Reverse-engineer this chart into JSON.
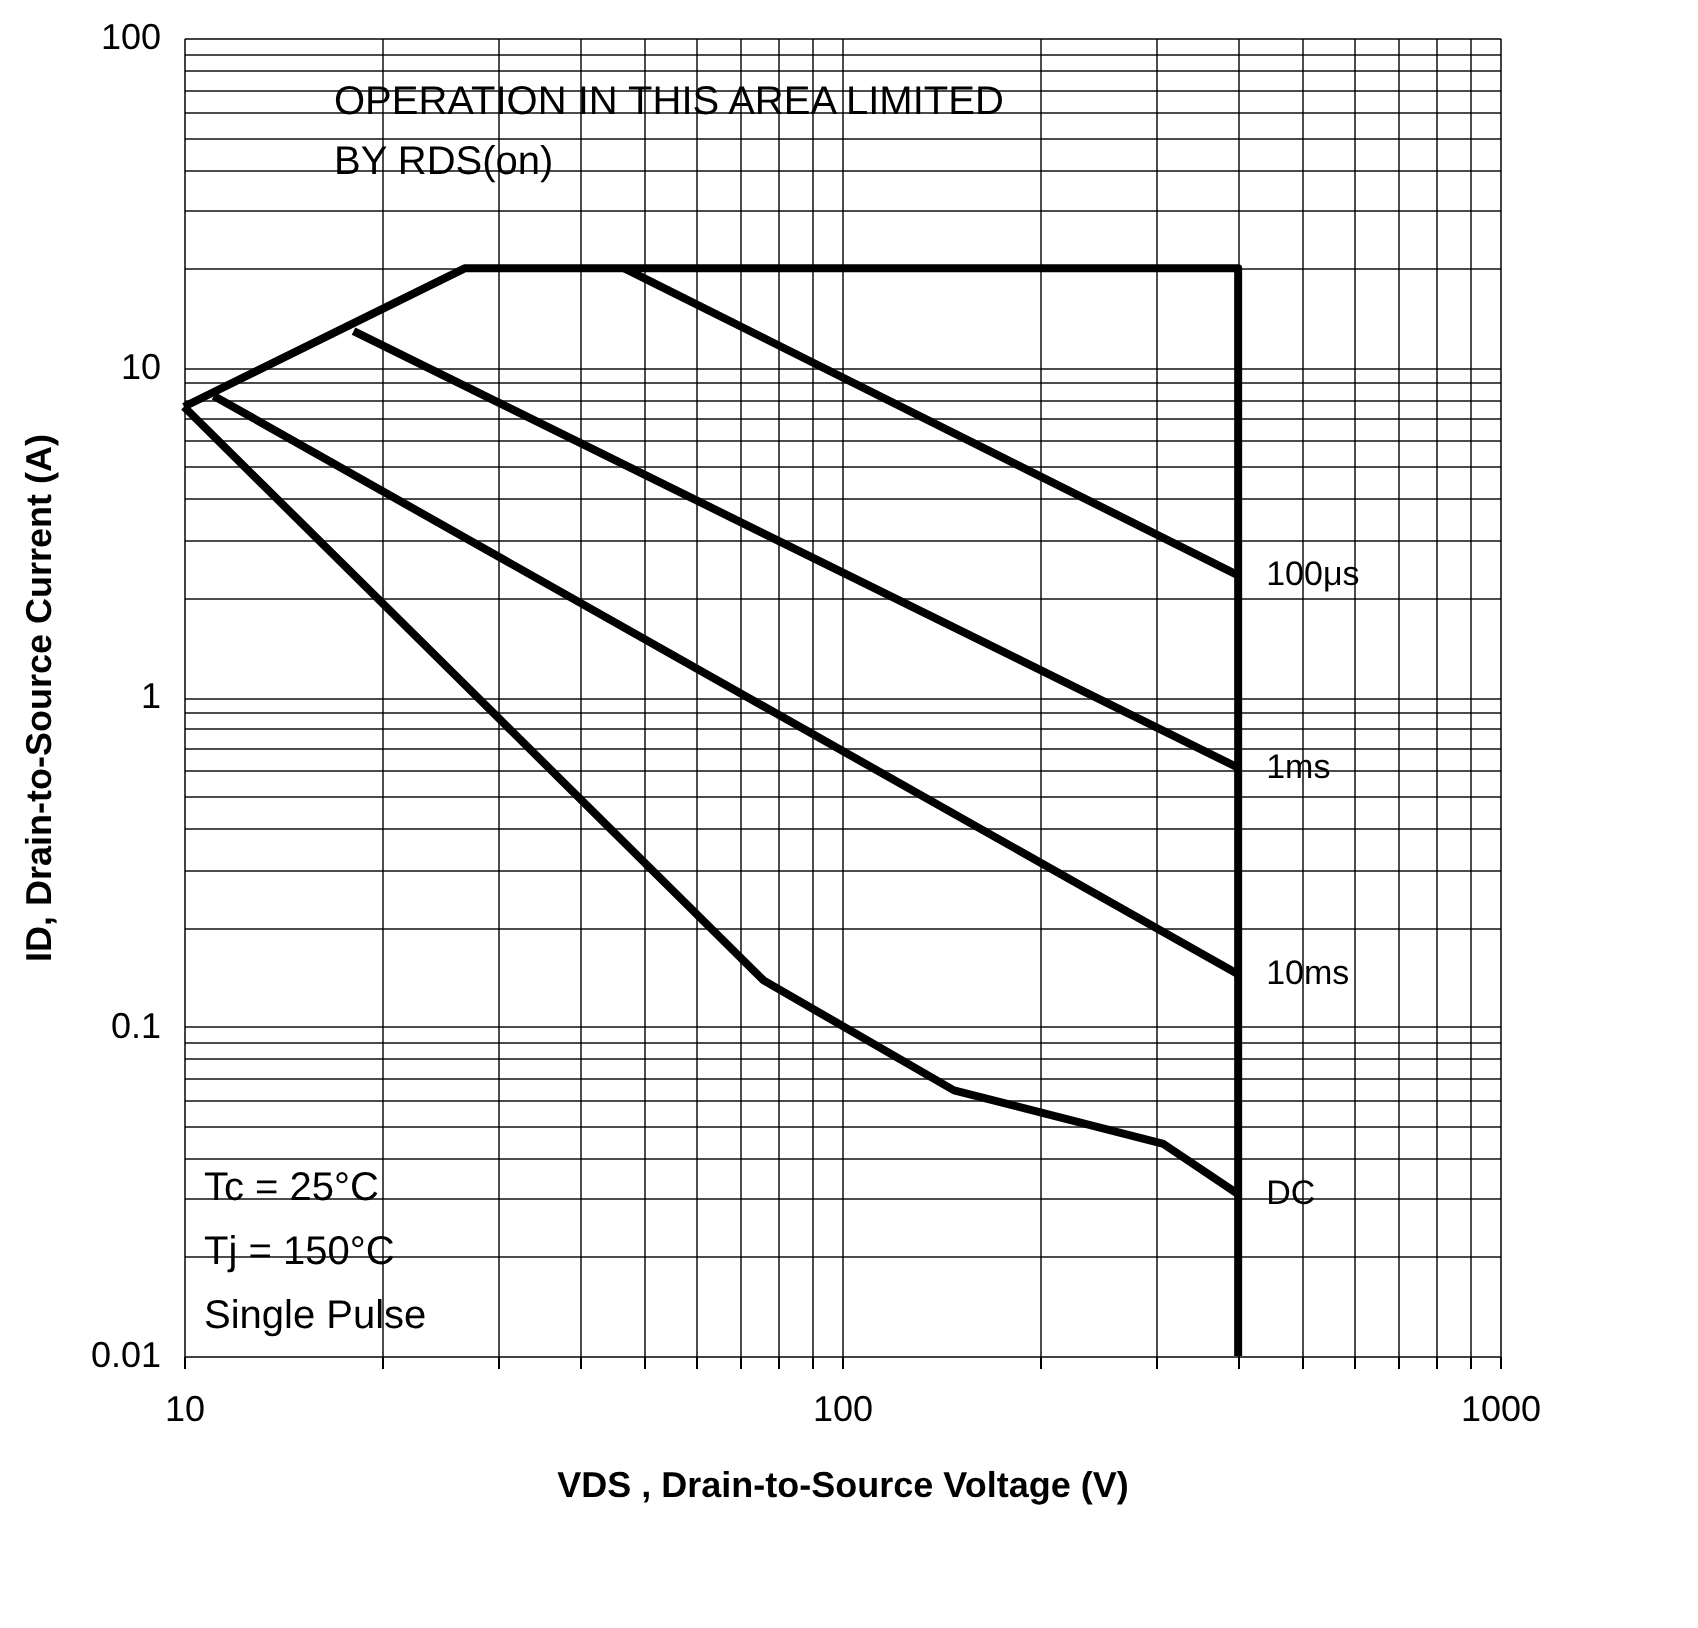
{
  "chart_data": {
    "type": "line",
    "xlabel": "VDS , Drain-to-Source Voltage (V)",
    "ylabel": "ID,  Drain-to-Source Current (A)",
    "log": "xy",
    "grid": true,
    "marker": "none",
    "line_style": "solid",
    "xlim": [
      10,
      1000
    ],
    "ylim": [
      0.01,
      100
    ],
    "xticks": [
      10,
      {
        "value": 20,
        "label": null
      },
      {
        "value": 30,
        "label": null
      },
      {
        "value": 40,
        "label": null
      },
      {
        "value": 50,
        "label": null
      },
      {
        "value": 60,
        "label": null
      },
      {
        "value": 70,
        "label": null
      },
      {
        "value": 80,
        "label": null
      },
      {
        "value": 90,
        "label": null
      },
      100,
      {
        "value": 200,
        "label": null
      },
      {
        "value": 300,
        "label": null
      },
      {
        "value": 400,
        "label": null
      },
      {
        "value": 500,
        "label": null
      },
      {
        "value": 600,
        "label": null
      },
      {
        "value": 700,
        "label": null
      },
      {
        "value": 800,
        "label": null
      },
      {
        "value": 900,
        "label": null
      },
      1000
    ],
    "yticks": [
      0.01,
      {
        "value": 0.02,
        "label": null
      },
      {
        "value": 0.03,
        "label": null
      },
      {
        "value": 0.04,
        "label": null
      },
      {
        "value": 0.05,
        "label": null
      },
      {
        "value": 0.06,
        "label": null
      },
      {
        "value": 0.07,
        "label": null
      },
      {
        "value": 0.08,
        "label": null
      },
      {
        "value": 0.09,
        "label": null
      },
      0.1,
      {
        "value": 0.2,
        "label": null
      },
      {
        "value": 0.3,
        "label": null
      },
      {
        "value": 0.4,
        "label": null
      },
      {
        "value": 0.5,
        "label": null
      },
      {
        "value": 0.6,
        "label": null
      },
      {
        "value": 0.7,
        "label": null
      },
      {
        "value": 0.8,
        "label": null
      },
      {
        "value": 0.9,
        "label": null
      },
      1,
      {
        "value": 2,
        "label": null
      },
      {
        "value": 3,
        "label": null
      },
      {
        "value": 4,
        "label": null
      },
      {
        "value": 5,
        "label": null
      },
      {
        "value": 6,
        "label": null
      },
      {
        "value": 7,
        "label": null
      },
      {
        "value": 8,
        "label": null
      },
      {
        "value": 9,
        "label": null
      },
      10,
      {
        "value": 20,
        "label": null
      },
      {
        "value": 30,
        "label": null
      },
      {
        "value": 40,
        "label": null
      },
      {
        "value": 50,
        "label": null
      },
      {
        "value": 60,
        "label": null
      },
      {
        "value": 70,
        "label": null
      },
      {
        "value": 80,
        "label": null
      },
      {
        "value": 90,
        "label": null
      },
      100
    ],
    "series": [
      {
        "color": "#000000",
        "x": [
          10,
          26.7,
          400,
          400
        ],
        "values": [
          7.6,
          20,
          20,
          0.01
        ]
      },
      {
        "name": "100μs",
        "color": "#000000",
        "x": [
          46.7,
          400
        ],
        "values": [
          20,
          2.34
        ]
      },
      {
        "name": "1ms",
        "color": "#000000",
        "x": [
          18.1,
          400
        ],
        "values": [
          12.9,
          0.61
        ]
      },
      {
        "name": "10ms",
        "color": "#000000",
        "x": [
          11.1,
          400
        ],
        "values": [
          8.2,
          0.144
        ]
      },
      {
        "name": "DC",
        "color": "#000000",
        "x": [
          10,
          76,
          148,
          308,
          400
        ],
        "values": [
          7.6,
          0.138,
          0.064,
          0.044,
          0.031
        ]
      }
    ],
    "annotations": [
      "OPERATION IN THIS AREA LIMITED",
      "BY RDS(on)",
      "Tc = 25°C",
      "Tj = 150°C",
      "Single Pulse"
    ]
  }
}
